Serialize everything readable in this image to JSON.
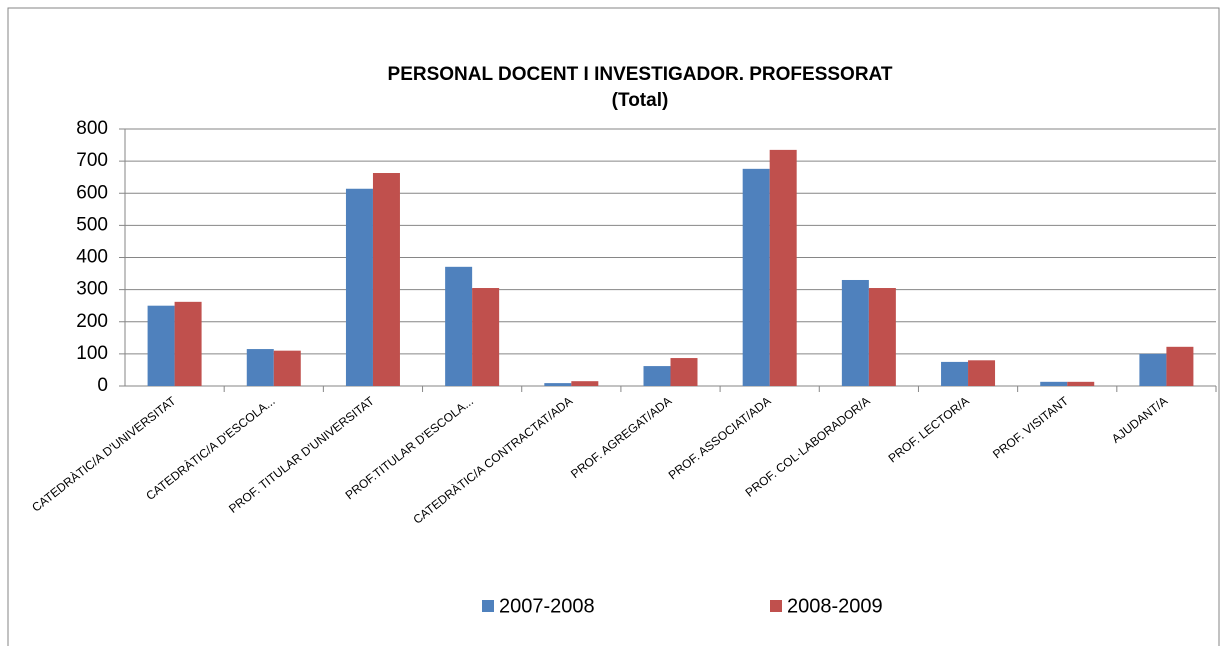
{
  "chart_data": {
    "type": "bar",
    "title": "PERSONAL DOCENT I INVESTIGADOR. PROFESSORAT",
    "subtitle": "(Total)",
    "categories": [
      "CATEDRÀTIC/A D'UNIVERSITAT",
      "CATEDRÀTIC/A D'ESCOLA...",
      "PROF. TITULAR D'UNIVERSITAT",
      "PROF.TITULAR D'ESCOLA...",
      "CATEDRÀTIC/A CONTRACTAT/ADA",
      "PROF. AGREGAT/ADA",
      "PROF. ASSOCIAT/ADA",
      "PROF. COL·LABORADOR/A",
      "PROF. LECTOR/A",
      "PROF. VISITANT",
      "AJUDANT/A"
    ],
    "series": [
      {
        "name": "2007-2008",
        "color": "#4f81bd",
        "values": [
          250,
          115,
          614,
          371,
          9,
          62,
          676,
          330,
          75,
          13,
          100
        ]
      },
      {
        "name": "2008-2009",
        "color": "#c0504d",
        "values": [
          262,
          110,
          663,
          305,
          15,
          87,
          735,
          305,
          80,
          13,
          122
        ]
      }
    ],
    "ylim": [
      0,
      800
    ],
    "yticks": [
      0,
      100,
      200,
      300,
      400,
      500,
      600,
      700,
      800
    ],
    "grid": true,
    "legend": "bottom"
  }
}
